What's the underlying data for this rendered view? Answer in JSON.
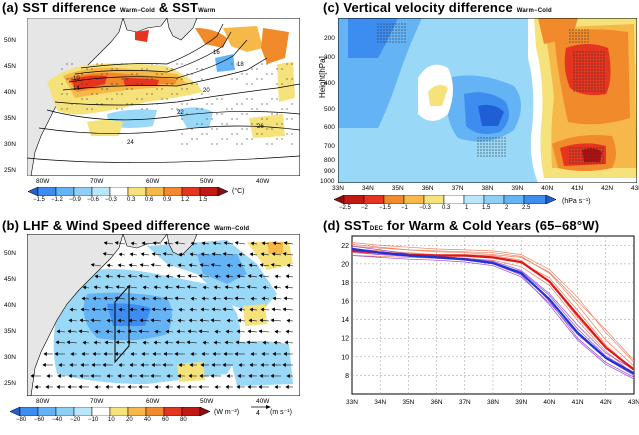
{
  "figure": {
    "panel_a": {
      "label": "(a)",
      "title": "SST difference",
      "title_sub": "Warm−Cold",
      "title_amp": "& SST",
      "title_sub2": "Warm",
      "lat_labels": [
        "50N",
        "45N",
        "40N",
        "35N",
        "30N",
        "25N"
      ],
      "lon_labels": [
        "80W",
        "70W",
        "60W",
        "50W",
        "40W"
      ],
      "contour_labels": [
        "10",
        "14",
        "16",
        "18",
        "20",
        "22",
        "24",
        "26"
      ],
      "colorbar_ticks": [
        "−1.5",
        "−1.2",
        "−0.9",
        "−0.6",
        "−0.3",
        "0.3",
        "0.6",
        "0.9",
        "1.2",
        "1.5"
      ],
      "colorbar_unit": "(°C)"
    },
    "panel_b": {
      "label": "(b)",
      "title": "LHF & Wind Speed difference",
      "title_sub": "Warm−Cold",
      "lat_labels": [
        "50N",
        "45N",
        "40N",
        "35N",
        "30N",
        "25N"
      ],
      "lon_labels": [
        "80W",
        "70W",
        "60W",
        "50W",
        "40W"
      ],
      "colorbar_ticks": [
        "−80",
        "−60",
        "−40",
        "−20",
        "−10",
        "10",
        "20",
        "40",
        "60",
        "80"
      ],
      "colorbar_unit": "(W m⁻²)",
      "ref_vector_value": "4",
      "ref_vector_unit": "(m s⁻¹)"
    },
    "panel_c": {
      "label": "(c)",
      "title": "Vertical velocity difference",
      "title_sub": "Warm−Cold",
      "ylabel": "Height[hPa]",
      "y_labels": [
        "200",
        "300",
        "400",
        "500",
        "600",
        "700",
        "800",
        "900",
        "1000"
      ],
      "x_labels": [
        "33N",
        "34N",
        "35N",
        "36N",
        "37N",
        "38N",
        "39N",
        "40N",
        "41N",
        "42N",
        "43N"
      ],
      "colorbar_ticks": [
        "−2.5",
        "−2",
        "−1.5",
        "−1",
        "−0.3",
        "0.3",
        "1",
        "1.5",
        "2",
        "2.5"
      ],
      "colorbar_unit": "(hPa s⁻¹)"
    },
    "panel_d": {
      "label": "(d)",
      "title": "SST",
      "title_sub": "DEC",
      "title_rest": "for Warm & Cold Years (65–68°W)"
    },
    "colors": {
      "blue_dark": "#1f5fd6",
      "blue_mid": "#3d8cf0",
      "blue_light": "#64b3f5",
      "cyan": "#9ad8f7",
      "yellow": "#f6e27a",
      "orange_light": "#f7b84a",
      "orange": "#f08a2a",
      "red": "#e5341f",
      "dark_red": "#b01010",
      "land": "#e6e6e6"
    }
  },
  "chart_data": {
    "type": "line",
    "title": "SST(DEC) for Warm & Cold Years (65–68°W)",
    "x": [
      "33N",
      "34N",
      "35N",
      "36N",
      "37N",
      "38N",
      "39N",
      "40N",
      "41N",
      "42N",
      "43N"
    ],
    "ylim": [
      6,
      23
    ],
    "ytick_labels": [
      "8",
      "10",
      "12",
      "14",
      "16",
      "18",
      "20",
      "22"
    ],
    "series": [
      {
        "group": "warm_mean",
        "color": "#e01818",
        "values": [
          21.4,
          21.2,
          21.0,
          20.9,
          20.9,
          20.7,
          20.2,
          18.1,
          14.5,
          11.0,
          8.6
        ]
      },
      {
        "group": "cold_mean",
        "color": "#1a35d8",
        "values": [
          21.6,
          21.2,
          20.9,
          20.7,
          20.5,
          20.1,
          19.0,
          16.2,
          12.6,
          9.9,
          8.2
        ]
      },
      {
        "group": "warm",
        "color": "#f08060",
        "values": [
          22.3,
          22.0,
          21.8,
          21.6,
          21.5,
          21.4,
          21.0,
          19.4,
          16.4,
          12.6,
          9.4
        ]
      },
      {
        "group": "warm",
        "color": "#f08060",
        "values": [
          21.9,
          21.7,
          21.5,
          21.4,
          21.3,
          21.2,
          20.8,
          19.0,
          15.6,
          11.8,
          9.0
        ]
      },
      {
        "group": "warm",
        "color": "#f08060",
        "values": [
          21.2,
          21.0,
          20.9,
          20.8,
          20.8,
          20.6,
          20.1,
          18.5,
          15.0,
          11.3,
          8.5
        ]
      },
      {
        "group": "warm",
        "color": "#f08060",
        "values": [
          20.9,
          20.8,
          20.7,
          20.6,
          20.6,
          20.4,
          19.7,
          17.7,
          13.9,
          10.6,
          8.1
        ]
      },
      {
        "group": "warm",
        "color": "#f08060",
        "values": [
          21.6,
          21.4,
          21.2,
          21.0,
          21.0,
          20.9,
          20.4,
          18.1,
          14.2,
          10.9,
          8.8
        ]
      },
      {
        "group": "warm",
        "color": "#f08060",
        "values": [
          22.1,
          21.8,
          21.5,
          21.3,
          21.2,
          21.0,
          20.7,
          19.1,
          16.0,
          12.9,
          9.6
        ]
      },
      {
        "group": "cold",
        "color": "#9a4ad8",
        "values": [
          21.9,
          21.5,
          21.1,
          20.8,
          20.6,
          20.2,
          19.1,
          16.0,
          12.0,
          9.4,
          7.8
        ]
      },
      {
        "group": "cold",
        "color": "#9a4ad8",
        "values": [
          21.3,
          21.0,
          20.8,
          20.6,
          20.4,
          20.0,
          18.8,
          15.6,
          11.8,
          9.2,
          7.6
        ]
      },
      {
        "group": "cold",
        "color": "#9a4ad8",
        "values": [
          21.7,
          21.3,
          21.0,
          20.8,
          20.6,
          20.3,
          19.3,
          16.8,
          13.4,
          10.4,
          8.6
        ]
      },
      {
        "group": "cold",
        "color": "#9a4ad8",
        "values": [
          20.9,
          20.7,
          20.5,
          20.4,
          20.2,
          19.8,
          18.6,
          15.8,
          12.4,
          9.8,
          8.0
        ]
      },
      {
        "group": "cold",
        "color": "#9a4ad8",
        "values": [
          21.5,
          21.1,
          20.9,
          20.7,
          20.4,
          20.0,
          19.2,
          16.6,
          13.0,
          10.1,
          8.3
        ]
      }
    ]
  }
}
